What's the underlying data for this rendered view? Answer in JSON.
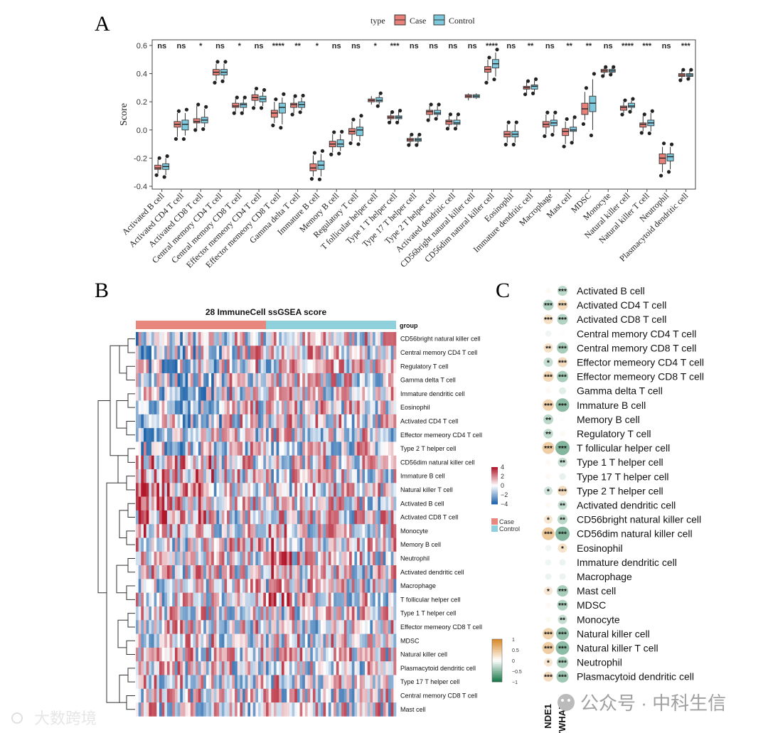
{
  "panels": {
    "a": "A",
    "b": "B",
    "c": "C"
  },
  "watermarks": {
    "left": "大数跨境",
    "right": "公众号 · 中科生信"
  },
  "chart_data": [
    {
      "type": "boxplot",
      "panel": "A",
      "ylabel": "Score",
      "ylim": [
        -0.42,
        0.64
      ],
      "yticks": [
        -0.4,
        -0.2,
        0.0,
        0.2,
        0.4,
        0.6
      ],
      "ytick_labels": [
        "-0.4",
        "-0.2",
        "0.0",
        "0.2",
        "0.4",
        "0.6"
      ],
      "legend": {
        "title": "type",
        "entries": [
          "Case",
          "Control"
        ]
      },
      "colors": {
        "Case": "#E8817A",
        "Control": "#7EC8DE",
        "stroke": "#333333"
      },
      "categories": [
        "Activated B cell",
        "Activated CD4 T cell",
        "Activated CD8 T cell",
        "Central memory CD4 T cell",
        "Central memory CD8 T cell",
        "Effector memeory CD4 T cell",
        "Effector memeory CD8 T cell",
        "Gamma delta T cell",
        "Immature  B cell",
        "Memory B cell",
        "Regulatory T cell",
        "T follicular helper cell",
        "Type 1 T helper cell",
        "Type 17 T helper cell",
        "Type 2 T helper cell",
        "Activated dendritic cell",
        "CD56bright natural killer cell",
        "CD56dim natural killer cell",
        "Eosinophil",
        "Immature dendritic cell",
        "Macrophage",
        "Mast cell",
        "MDSC",
        "Monocyte",
        "Natural killer cell",
        "Natural killer T cell",
        "Neutrophil",
        "Plasmacytoid dendritic cell"
      ],
      "significance": [
        "ns",
        "ns",
        "*",
        "ns",
        "*",
        "ns",
        "****",
        "**",
        "*",
        "ns",
        "ns",
        "*",
        "***",
        "ns",
        "ns",
        "ns",
        "ns",
        "****",
        "ns",
        "**",
        "ns",
        "**",
        "**",
        "ns",
        "****",
        "***",
        "ns",
        "***"
      ],
      "case": [
        [
          -0.31,
          -0.28,
          -0.27,
          -0.25,
          -0.21
        ],
        [
          -0.05,
          0.02,
          0.04,
          0.06,
          0.12
        ],
        [
          0.01,
          0.05,
          0.06,
          0.08,
          0.17
        ],
        [
          0.35,
          0.39,
          0.41,
          0.43,
          0.47
        ],
        [
          0.13,
          0.16,
          0.17,
          0.19,
          0.22
        ],
        [
          0.17,
          0.21,
          0.23,
          0.25,
          0.28
        ],
        [
          0.05,
          0.09,
          0.12,
          0.14,
          0.2
        ],
        [
          0.12,
          0.16,
          0.18,
          0.19,
          0.23
        ],
        [
          -0.33,
          -0.29,
          -0.27,
          -0.24,
          -0.18
        ],
        [
          -0.16,
          -0.12,
          -0.1,
          -0.08,
          -0.03
        ],
        [
          -0.08,
          -0.03,
          -0.01,
          0.01,
          0.06
        ],
        [
          0.18,
          0.2,
          0.21,
          0.22,
          0.24
        ],
        [
          0.06,
          0.08,
          0.09,
          0.1,
          0.12
        ],
        [
          -0.1,
          -0.08,
          -0.07,
          -0.06,
          -0.04
        ],
        [
          0.08,
          0.11,
          0.13,
          0.14,
          0.17
        ],
        [
          0.02,
          0.04,
          0.06,
          0.07,
          0.1
        ],
        [
          0.21,
          0.23,
          0.24,
          0.25,
          0.26
        ],
        [
          0.35,
          0.41,
          0.43,
          0.45,
          0.5
        ],
        [
          -0.09,
          -0.05,
          -0.03,
          -0.01,
          0.04
        ],
        [
          0.26,
          0.29,
          0.3,
          0.31,
          0.34
        ],
        [
          -0.03,
          0.02,
          0.04,
          0.06,
          0.11
        ],
        [
          -0.1,
          -0.04,
          -0.01,
          0.01,
          0.06
        ],
        [
          0.07,
          0.11,
          0.15,
          0.19,
          0.27
        ],
        [
          0.39,
          0.41,
          0.42,
          0.43,
          0.44
        ],
        [
          0.12,
          0.14,
          0.16,
          0.17,
          0.2
        ],
        [
          -0.01,
          0.02,
          0.04,
          0.05,
          0.1
        ],
        [
          -0.3,
          -0.24,
          -0.2,
          -0.17,
          -0.12
        ],
        [
          0.36,
          0.38,
          0.39,
          0.4,
          0.42
        ]
      ],
      "control": [
        [
          -0.32,
          -0.28,
          -0.26,
          -0.24,
          -0.2
        ],
        [
          -0.04,
          0.0,
          0.04,
          0.07,
          0.12
        ],
        [
          0.02,
          0.05,
          0.07,
          0.09,
          0.15
        ],
        [
          0.36,
          0.39,
          0.41,
          0.43,
          0.47
        ],
        [
          0.13,
          0.16,
          0.18,
          0.19,
          0.22
        ],
        [
          0.17,
          0.2,
          0.22,
          0.24,
          0.27
        ],
        [
          0.04,
          0.12,
          0.16,
          0.19,
          0.23
        ],
        [
          0.14,
          0.16,
          0.18,
          0.2,
          0.23
        ],
        [
          -0.33,
          -0.28,
          -0.25,
          -0.22,
          -0.17
        ],
        [
          -0.15,
          -0.12,
          -0.1,
          -0.07,
          -0.03
        ],
        [
          -0.08,
          -0.04,
          0.0,
          0.02,
          0.08
        ],
        [
          0.18,
          0.2,
          0.21,
          0.23,
          0.25
        ],
        [
          0.06,
          0.08,
          0.09,
          0.1,
          0.13
        ],
        [
          -0.1,
          -0.08,
          -0.07,
          -0.06,
          -0.04
        ],
        [
          0.09,
          0.11,
          0.12,
          0.14,
          0.17
        ],
        [
          0.02,
          0.04,
          0.05,
          0.07,
          0.1
        ],
        [
          0.22,
          0.23,
          0.24,
          0.25,
          0.26
        ],
        [
          0.38,
          0.44,
          0.47,
          0.5,
          0.55
        ],
        [
          -0.09,
          -0.05,
          -0.03,
          -0.01,
          0.04
        ],
        [
          0.27,
          0.29,
          0.31,
          0.32,
          0.35
        ],
        [
          -0.02,
          0.03,
          0.05,
          0.07,
          0.11
        ],
        [
          -0.08,
          -0.01,
          0.0,
          0.02,
          0.08
        ],
        [
          0.0,
          0.13,
          0.19,
          0.24,
          0.36
        ],
        [
          0.4,
          0.41,
          0.42,
          0.43,
          0.44
        ],
        [
          0.14,
          0.16,
          0.17,
          0.19,
          0.21
        ],
        [
          -0.01,
          0.03,
          0.05,
          0.07,
          0.12
        ],
        [
          -0.28,
          -0.22,
          -0.19,
          -0.17,
          -0.12
        ],
        [
          0.37,
          0.38,
          0.39,
          0.4,
          0.42
        ]
      ]
    },
    {
      "type": "heatmap",
      "panel": "B",
      "title": "28 ImmuneCell ssGSEA score",
      "annotation_title": "group",
      "groups": [
        "Case",
        "Control"
      ],
      "group_colors": {
        "Case": "#E8877E",
        "Control": "#8ED0DC"
      },
      "color_scale": {
        "ticks": [
          4,
          2,
          0,
          -2,
          -4
        ],
        "labels": [
          "4",
          "2",
          "0",
          "−2",
          "−4"
        ],
        "high": "#B2182B",
        "mid": "#FFFFFF",
        "low": "#2166AC"
      },
      "rows": [
        "CD56bright natural killer cell",
        "Central memory CD4 T cell",
        "Regulatory T cell",
        "Gamma delta T cell",
        "Immature dendritic cell",
        "Eosinophil",
        "Activated CD4 T cell",
        "Effector memeory CD4 T cell",
        "Type 2 T helper cell",
        "CD56dim natural killer cell",
        "Immature  B cell",
        "Natural killer T cell",
        "Activated B cell",
        "Activated CD8 T cell",
        "Monocyte",
        "Memory B cell",
        "Neutrophil",
        "Activated dendritic cell",
        "Macrophage",
        "T follicular helper cell",
        "Type 1 T helper cell",
        "Effector memeory CD8 T cell",
        "MDSC",
        "Natural killer cell",
        "Plasmacytoid dendritic cell",
        "Type 17 T helper cell",
        "Central memory CD8 T cell",
        "Mast cell"
      ],
      "columns_case": 50,
      "columns_control": 50
    },
    {
      "type": "dotplot",
      "panel": "C",
      "genes": [
        "NDE1",
        "YWHAZ"
      ],
      "color_scale": {
        "ticks": [
          1,
          0.5,
          0,
          -0.5,
          -1
        ],
        "labels": [
          "1",
          "0.5",
          "0",
          "−0.5",
          "−1"
        ],
        "high": "#D98B2B",
        "mid": "#FFFFFF",
        "low": "#1E7B4E"
      },
      "rows": [
        "Activated B cell",
        "Activated CD4 T cell",
        "Activated CD8 T cell",
        "Central memory CD4 T cell",
        "Central memory CD8 T cell",
        "Effector memeory CD4 T cell",
        "Effector memeory CD8 T cell",
        "Gamma delta T cell",
        "Immature  B cell",
        "Memory B cell",
        "Regulatory T cell",
        "T follicular helper cell",
        "Type 1 T helper cell",
        "Type 17 T helper cell",
        "Type 2 T helper cell",
        "Activated dendritic cell",
        "CD56bright natural killer cell",
        "CD56dim natural killer cell",
        "Eosinophil",
        "Immature dendritic cell",
        "Macrophage",
        "Mast cell",
        "MDSC",
        "Monocyte",
        "Natural killer cell",
        "Natural killer T cell",
        "Neutrophil",
        "Plasmacytoid dendritic cell"
      ],
      "values": [
        [
          0.05,
          -0.35
        ],
        [
          -0.4,
          0.38
        ],
        [
          0.32,
          -0.4
        ],
        [
          -0.08,
          0.02
        ],
        [
          0.3,
          -0.45
        ],
        [
          -0.3,
          0.35
        ],
        [
          0.4,
          -0.45
        ],
        [
          0.05,
          -0.15
        ],
        [
          0.45,
          -0.6
        ],
        [
          -0.35,
          0.02
        ],
        [
          -0.33,
          0.05
        ],
        [
          0.5,
          -0.65
        ],
        [
          0.05,
          -0.3
        ],
        [
          0.05,
          -0.12
        ],
        [
          -0.25,
          0.35
        ],
        [
          0.05,
          -0.3
        ],
        [
          0.25,
          -0.35
        ],
        [
          0.55,
          -0.65
        ],
        [
          -0.08,
          0.3
        ],
        [
          -0.08,
          -0.1
        ],
        [
          -0.1,
          -0.1
        ],
        [
          0.25,
          -0.45
        ],
        [
          0.05,
          -0.4
        ],
        [
          0.05,
          -0.3
        ],
        [
          0.45,
          -0.55
        ],
        [
          0.5,
          -0.6
        ],
        [
          0.25,
          -0.45
        ],
        [
          0.35,
          -0.5
        ]
      ],
      "stars": [
        [
          "",
          "***"
        ],
        [
          "***",
          "***"
        ],
        [
          "***",
          "***"
        ],
        [
          "",
          ""
        ],
        [
          "**",
          "***"
        ],
        [
          "*",
          "***"
        ],
        [
          "***",
          "***"
        ],
        [
          "",
          ""
        ],
        [
          "***",
          "***"
        ],
        [
          "**",
          ""
        ],
        [
          "**",
          ""
        ],
        [
          "***",
          "***"
        ],
        [
          "",
          "**"
        ],
        [
          "",
          ""
        ],
        [
          "*",
          "***"
        ],
        [
          "",
          "**"
        ],
        [
          "*",
          "**"
        ],
        [
          "***",
          "***"
        ],
        [
          "",
          "*"
        ],
        [
          "",
          ""
        ],
        [
          "",
          ""
        ],
        [
          "*",
          "***"
        ],
        [
          "",
          "***"
        ],
        [
          "",
          "**"
        ],
        [
          "***",
          "***"
        ],
        [
          "***",
          "***"
        ],
        [
          "*",
          "***"
        ],
        [
          "***",
          "***"
        ]
      ]
    }
  ]
}
